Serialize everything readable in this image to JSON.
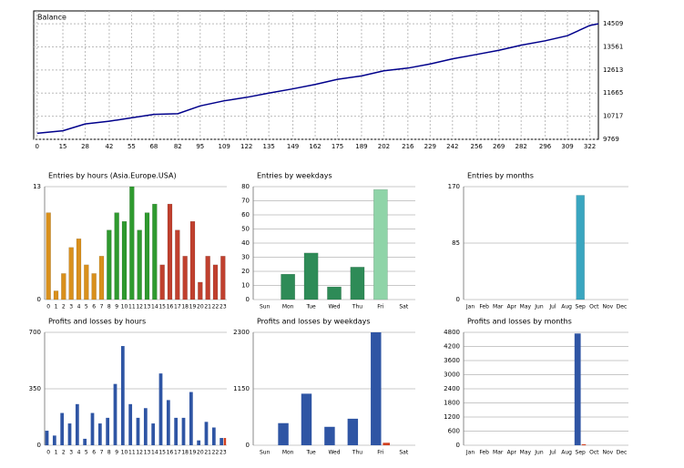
{
  "chart_data": [
    {
      "type": "line",
      "title": "Balance",
      "x": [
        0,
        15,
        28,
        42,
        55,
        68,
        82,
        95,
        109,
        122,
        135,
        149,
        162,
        175,
        189,
        202,
        216,
        229,
        242,
        256,
        269,
        282,
        296,
        309,
        322,
        327
      ],
      "series": [
        {
          "name": "Balance",
          "color": "#00008b",
          "values": [
            10015,
            10120,
            10400,
            10510,
            10650,
            10790,
            10820,
            11140,
            11350,
            11490,
            11665,
            11840,
            12020,
            12230,
            12370,
            12580,
            12690,
            12860,
            13070,
            13250,
            13420,
            13630,
            13810,
            14020,
            14440,
            14509
          ]
        }
      ],
      "xlim": [
        -2,
        327
      ],
      "xticks": [
        0,
        15,
        28,
        42,
        55,
        68,
        82,
        95,
        109,
        122,
        135,
        149,
        162,
        175,
        189,
        202,
        216,
        229,
        242,
        256,
        269,
        282,
        296,
        309,
        322
      ],
      "ylim": [
        9769,
        15036
      ],
      "yticks": [
        9769,
        10717,
        11665,
        12613,
        13561,
        14509
      ],
      "grid": true
    },
    {
      "type": "bar",
      "title": "Entries by hours (Asia.Europe.USA)",
      "categories": [
        "0",
        "1",
        "2",
        "3",
        "4",
        "5",
        "6",
        "7",
        "8",
        "9",
        "10",
        "11",
        "12",
        "13",
        "14",
        "15",
        "16",
        "17",
        "18",
        "19",
        "20",
        "21",
        "22",
        "23"
      ],
      "values": [
        10,
        1,
        3,
        6,
        7,
        4,
        3,
        5,
        8,
        10,
        9,
        13,
        8,
        10,
        11,
        4,
        11,
        8,
        5,
        9,
        2,
        5,
        4,
        5
      ],
      "colors": [
        "#d9901c",
        "#d9901c",
        "#d9901c",
        "#d9901c",
        "#d9901c",
        "#d9901c",
        "#d9901c",
        "#d9901c",
        "#2f9a2f",
        "#2f9a2f",
        "#2f9a2f",
        "#2f9a2f",
        "#2f9a2f",
        "#2f9a2f",
        "#2f9a2f",
        "#c0402e",
        "#c0402e",
        "#c0402e",
        "#c0402e",
        "#c0402e",
        "#c0402e",
        "#c0402e",
        "#c0402e",
        "#c0402e"
      ],
      "ylim": [
        0,
        13
      ],
      "yticks": [
        0,
        13
      ]
    },
    {
      "type": "bar",
      "title": "Entries by weekdays",
      "categories": [
        "Sun",
        "Mon",
        "Tue",
        "Wed",
        "Thu",
        "Fri",
        "Sat"
      ],
      "values": [
        0,
        18,
        33,
        9,
        23,
        78,
        0
      ],
      "colors": [
        "#2e8b57",
        "#2e8b57",
        "#2e8b57",
        "#2e8b57",
        "#2e8b57",
        "#8fd4a8",
        "#2e8b57"
      ],
      "ylim": [
        0,
        80
      ],
      "yticks": [
        0,
        10,
        20,
        30,
        40,
        50,
        60,
        70,
        80
      ]
    },
    {
      "type": "bar",
      "title": "Entries by months",
      "categories": [
        "Jan",
        "Feb",
        "Mar",
        "Apr",
        "May",
        "Jun",
        "Jul",
        "Aug",
        "Sep",
        "Oct",
        "Nov",
        "Dec"
      ],
      "values": [
        0,
        0,
        0,
        0,
        0,
        0,
        0,
        0,
        157,
        0,
        0,
        0
      ],
      "color": "#3aa6c0",
      "ylim": [
        0,
        170
      ],
      "yticks": [
        0,
        85,
        170
      ]
    },
    {
      "type": "bar",
      "title": "Profits and losses by hours",
      "categories": [
        "0",
        "1",
        "2",
        "3",
        "4",
        "5",
        "6",
        "7",
        "8",
        "9",
        "10",
        "11",
        "12",
        "13",
        "14",
        "15",
        "16",
        "17",
        "18",
        "19",
        "20",
        "21",
        "22",
        "23"
      ],
      "series": [
        {
          "name": "Profits",
          "color": "#2f55a4",
          "values": [
            90,
            60,
            200,
            135,
            255,
            40,
            200,
            135,
            170,
            380,
            615,
            255,
            170,
            230,
            135,
            445,
            280,
            170,
            170,
            330,
            30,
            145,
            110,
            45
          ]
        },
        {
          "name": "Losses",
          "color": "#d04020",
          "values": [
            0,
            0,
            0,
            0,
            0,
            0,
            0,
            0,
            0,
            0,
            0,
            0,
            0,
            0,
            0,
            0,
            0,
            0,
            0,
            0,
            0,
            0,
            0,
            45
          ]
        }
      ],
      "ylim": [
        0,
        700
      ],
      "yticks": [
        0,
        350,
        700
      ]
    },
    {
      "type": "bar",
      "title": "Profits and losses by weekdays",
      "categories": [
        "Sun",
        "Mon",
        "Tue",
        "Wed",
        "Thu",
        "Fri",
        "Sat"
      ],
      "series": [
        {
          "name": "Profits",
          "color": "#2f55a4",
          "values": [
            0,
            450,
            1050,
            375,
            540,
            2300,
            0
          ]
        },
        {
          "name": "Losses",
          "color": "#d04020",
          "values": [
            0,
            0,
            0,
            0,
            0,
            50,
            0
          ]
        }
      ],
      "ylim": [
        0,
        2300
      ],
      "yticks": [
        0,
        1150,
        2300
      ]
    },
    {
      "type": "bar",
      "title": "Profits and losses by months",
      "categories": [
        "Jan",
        "Feb",
        "Mar",
        "Apr",
        "May",
        "Jun",
        "Jul",
        "Aug",
        "Sep",
        "Oct",
        "Nov",
        "Dec"
      ],
      "series": [
        {
          "name": "Profits",
          "color": "#2f55a4",
          "values": [
            0,
            0,
            0,
            0,
            0,
            0,
            0,
            0,
            4750,
            0,
            0,
            0
          ]
        },
        {
          "name": "Losses",
          "color": "#d04020",
          "values": [
            0,
            0,
            0,
            0,
            0,
            0,
            0,
            0,
            40,
            0,
            0,
            0
          ]
        }
      ],
      "ylim": [
        0,
        4800
      ],
      "yticks": [
        0,
        600,
        1200,
        1800,
        2400,
        3000,
        3600,
        4200,
        4800
      ]
    }
  ]
}
